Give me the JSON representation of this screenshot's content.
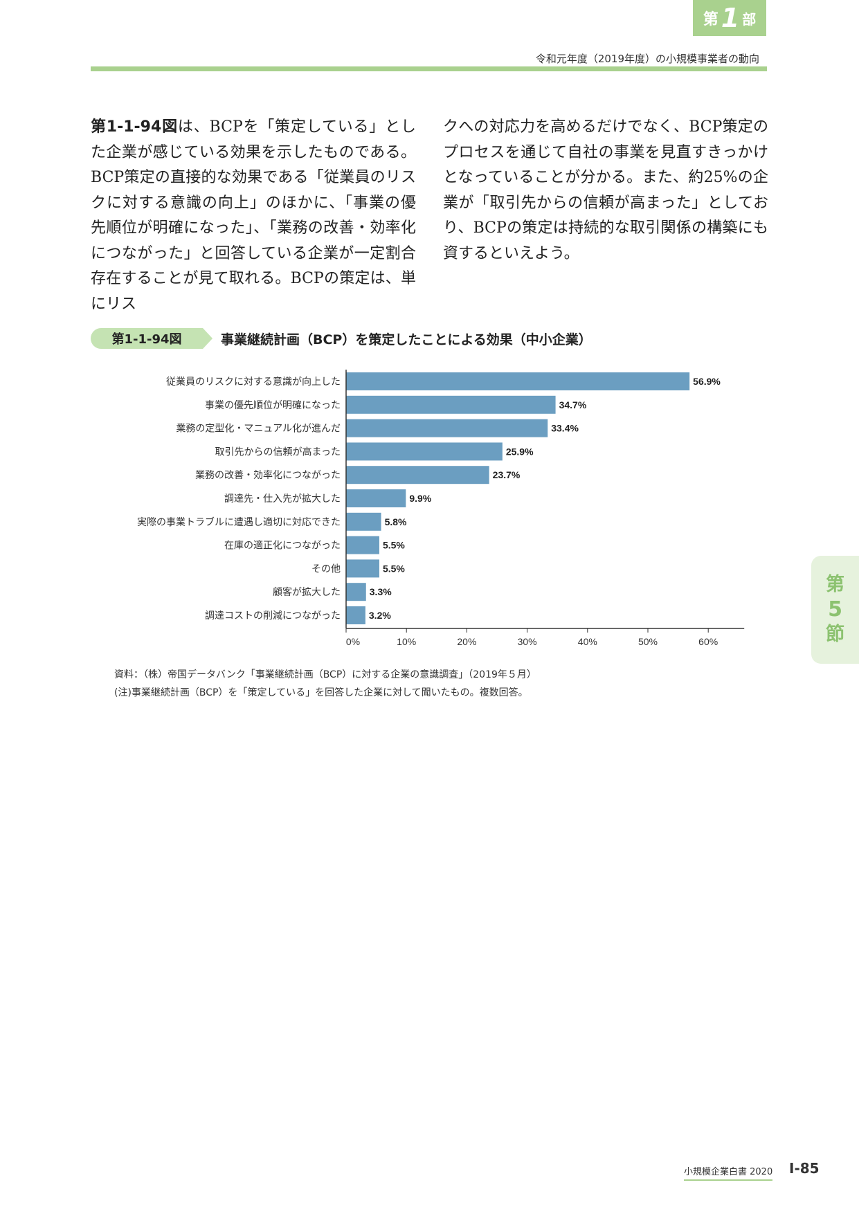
{
  "header": {
    "part_prefix": "第",
    "part_number": "1",
    "part_suffix": "部",
    "running_title": "令和元年度（2019年度）の小規模事業者の動向"
  },
  "body": {
    "left_ref": "第1-1-94図",
    "left_text": "は、BCPを「策定している」とした企業が感じている効果を示したものである。BCP策定の直接的な効果である「従業員のリスクに対する意識の向上」のほかに、「事業の優先順位が明確になった」、「業務の改善・効率化につながった」と回答している企業が一定割合存在することが見て取れる。BCPの策定は、単にリス",
    "right_text": "クへの対応力を高めるだけでなく、BCP策定のプロセスを通じて自社の事業を見直すきっかけとなっていることが分かる。また、約25%の企業が「取引先からの信頼が高まった」としており、BCPの策定は持続的な取引関係の構築にも資するといえよう。"
  },
  "figure": {
    "label": "第1-1-94図",
    "title": "事業継続計画（BCP）を策定したことによる効果（中小企業）",
    "source": "資料：（株）帝国データバンク「事業継続計画（BCP）に対する企業の意識調査」（2019年５月）",
    "note": "(注)事業継続計画（BCP）を「策定している」を回答した企業に対して聞いたもの。複数回答。"
  },
  "chart_data": {
    "type": "bar",
    "orientation": "horizontal",
    "categories": [
      "従業員のリスクに対する意識が向上した",
      "事業の優先順位が明確になった",
      "業務の定型化・マニュアル化が進んだ",
      "取引先からの信頼が高まった",
      "業務の改善・効率化につながった",
      "調達先・仕入先が拡大した",
      "実際の事業トラブルに遭遇し適切に対応できた",
      "在庫の適正化につながった",
      "その他",
      "顧客が拡大した",
      "調達コストの削減につながった"
    ],
    "values": [
      56.9,
      34.7,
      33.4,
      25.9,
      23.7,
      9.9,
      5.8,
      5.5,
      5.5,
      3.3,
      3.2
    ],
    "value_labels": [
      "56.9%",
      "34.7%",
      "33.4%",
      "25.9%",
      "23.7%",
      "9.9%",
      "5.8%",
      "5.5%",
      "5.5%",
      "3.3%",
      "3.2%"
    ],
    "xlim": [
      0,
      60
    ],
    "x_ticks": [
      0,
      10,
      20,
      30,
      40,
      50,
      60
    ],
    "x_tick_labels": [
      "0%",
      "10%",
      "20%",
      "30%",
      "40%",
      "50%",
      "60%"
    ],
    "grid": false,
    "bar_color": "#6b9ec1"
  },
  "section_tab": {
    "prefix": "第",
    "number": "5",
    "suffix": "節"
  },
  "footer": {
    "book_title": "小規模企業白書 2020",
    "page_number": "Ⅰ-85"
  }
}
